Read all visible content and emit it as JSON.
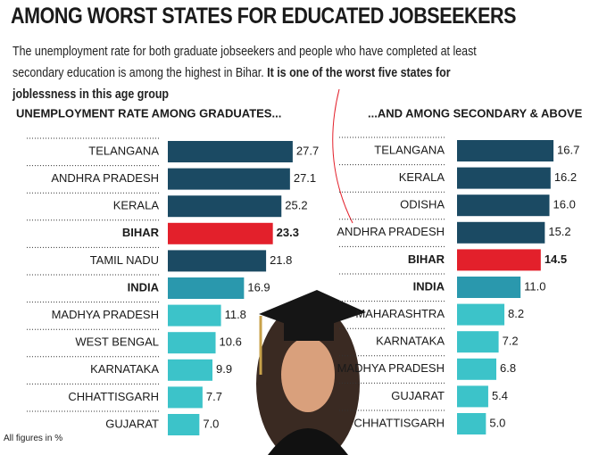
{
  "title": "AMONG WORST STATES FOR EDUCATED JOBSEEKERS",
  "subtitle": "The unemployment rate for both graduate jobseekers and people who have completed at least secondary education is among the highest in Bihar.",
  "subtitle_bold": "It is one of the worst five states for joblessness in this age group",
  "note": "All figures in %",
  "chart_data": [
    {
      "type": "bar",
      "orientation": "horizontal",
      "title": "UNEMPLOYMENT RATE AMONG GRADUATES...",
      "categories": [
        "TELANGANA",
        "ANDHRA PRADESH",
        "KERALA",
        "BIHAR",
        "TAMIL NADU",
        "INDIA",
        "MADHYA PRADESH",
        "WEST BENGAL",
        "KARNATAKA",
        "CHHATTISGARH",
        "GUJARAT"
      ],
      "values": [
        27.7,
        27.1,
        25.2,
        23.3,
        21.8,
        16.9,
        11.8,
        10.6,
        9.9,
        7.7,
        7.0
      ],
      "value_labels": [
        "27.7",
        "27.1",
        "25.2",
        "23.3",
        "21.8",
        "16.9",
        "11.8",
        "10.6",
        "9.9",
        "7.7",
        "7.0"
      ],
      "colors": [
        "#1b4a63",
        "#1b4a63",
        "#1b4a63",
        "#e3202b",
        "#1b4a63",
        "#2a98ad",
        "#3cc3c9",
        "#3cc3c9",
        "#3cc3c9",
        "#3cc3c9",
        "#3cc3c9"
      ]
    },
    {
      "type": "bar",
      "orientation": "horizontal",
      "title": "...AND AMONG SECONDARY & ABOVE",
      "categories": [
        "TELANGANA",
        "KERALA",
        "ODISHA",
        "ANDHRA PRADESH",
        "BIHAR",
        "INDIA",
        "MAHARASHTRA",
        "KARNATAKA",
        "MADHYA PRADESH",
        "GUJARAT",
        "CHHATTISGARH"
      ],
      "values": [
        16.7,
        16.2,
        16.0,
        15.2,
        14.5,
        11.0,
        8.2,
        7.2,
        6.8,
        5.4,
        5.0
      ],
      "value_labels": [
        "16.7",
        "16.2",
        "16.0",
        "15.2",
        "14.5",
        "11.0",
        "8.2",
        "7.2",
        "6.8",
        "5.4",
        "5.0"
      ],
      "colors": [
        "#1b4a63",
        "#1b4a63",
        "#1b4a63",
        "#1b4a63",
        "#e3202b",
        "#2a98ad",
        "#3cc3c9",
        "#3cc3c9",
        "#3cc3c9",
        "#3cc3c9",
        "#3cc3c9"
      ]
    }
  ]
}
